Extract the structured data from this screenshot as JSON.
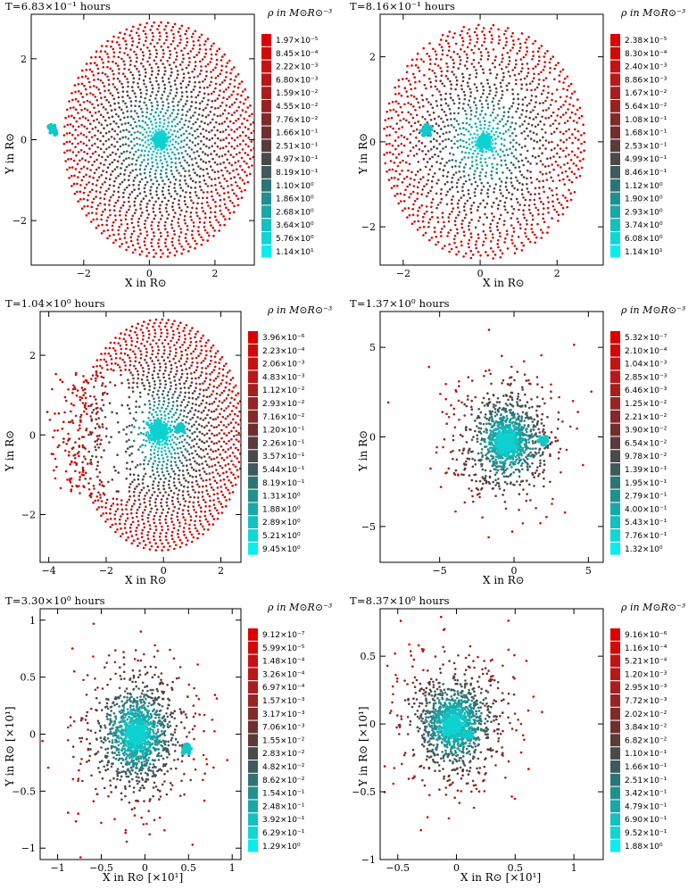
{
  "panels": [
    {
      "time": "T=6.83×10⁻¹ hours",
      "colorbar_title": "ρ in M⊙R⊙⁻³",
      "xlabel": "X in R⊙",
      "ylabel": "Y in R⊙",
      "xticks": [
        "−2",
        "0",
        "2"
      ],
      "yticks": [
        "2",
        "0",
        "−2"
      ],
      "colorbar": [
        "1.97×10⁻⁵",
        "8.45×10⁻⁴",
        "2.22×10⁻³",
        "6.80×10⁻³",
        "1.59×10⁻²",
        "4.55×10⁻²",
        "7.76×10⁻²",
        "1.66×10⁻¹",
        "2.51×10⁻¹",
        "4.97×10⁻¹",
        "8.19×10⁻¹",
        "1.10×10⁰",
        "1.86×10⁰",
        "2.68×10⁰",
        "3.64×10⁰",
        "5.76×10⁰",
        "1.14×10¹"
      ]
    },
    {
      "time": "T=8.16×10⁻¹ hours",
      "colorbar_title": "ρ in M⊙R⊙⁻³",
      "xlabel": "X in R⊙",
      "ylabel": "Y in R⊙",
      "xticks": [
        "−2",
        "0",
        "2"
      ],
      "yticks": [
        "2",
        "0",
        "−2"
      ],
      "colorbar": [
        "2.38×10⁻⁵",
        "8.30×10⁻⁴",
        "2.40×10⁻³",
        "8.86×10⁻³",
        "1.67×10⁻²",
        "5.64×10⁻²",
        "1.08×10⁻¹",
        "1.68×10⁻¹",
        "2.53×10⁻¹",
        "4.99×10⁻¹",
        "8.46×10⁻¹",
        "1.12×10⁰",
        "1.90×10⁰",
        "2.93×10⁰",
        "3.74×10⁰",
        "6.08×10⁰",
        "1.14×10¹"
      ]
    },
    {
      "time": "T=1.04×10⁰ hours",
      "colorbar_title": "ρ in M⊙R⊙⁻³",
      "xlabel": "X in R⊙",
      "ylabel": "Y in R⊙",
      "xticks": [
        "−4",
        "−2",
        "0",
        "2"
      ],
      "yticks": [
        "2",
        "0",
        "−2"
      ],
      "colorbar": [
        "3.96×10⁻⁶",
        "2.23×10⁻⁴",
        "2.06×10⁻³",
        "4.83×10⁻³",
        "1.12×10⁻²",
        "2.93×10⁻²",
        "7.16×10⁻²",
        "1.20×10⁻¹",
        "2.26×10⁻¹",
        "3.57×10⁻¹",
        "5.44×10⁻¹",
        "8.19×10⁻¹",
        "1.31×10⁰",
        "1.88×10⁰",
        "2.89×10⁰",
        "5.21×10⁰",
        "9.45×10⁰"
      ]
    },
    {
      "time": "T=1.37×10⁰ hours",
      "colorbar_title": "ρ in M⊙R⊙⁻³",
      "xlabel": "X in R⊙",
      "ylabel": "Y in R⊙",
      "xticks": [
        "−5",
        "0",
        "5"
      ],
      "yticks": [
        "5",
        "0",
        "−5"
      ],
      "colorbar": [
        "5.32×10⁻⁷",
        "2.10×10⁻⁴",
        "1.04×10⁻³",
        "2.85×10⁻³",
        "6.46×10⁻³",
        "1.25×10⁻²",
        "2.21×10⁻²",
        "3.90×10⁻²",
        "6.54×10⁻²",
        "9.78×10⁻²",
        "1.39×10⁻¹",
        "1.95×10⁻¹",
        "2.79×10⁻¹",
        "4.00×10⁻¹",
        "5.43×10⁻¹",
        "7.76×10⁻¹",
        "1.32×10⁰"
      ]
    },
    {
      "time": "T=3.30×10⁰ hours",
      "colorbar_title": "ρ in M⊙R⊙⁻³",
      "xlabel": "X in R⊙ [×10¹]",
      "ylabel": "Y in R⊙ [×10¹]",
      "xticks": [
        "−1",
        "−0.5",
        "0",
        "0.5",
        "1"
      ],
      "yticks": [
        "1",
        "0.5",
        "0",
        "−0.5",
        "−1"
      ],
      "colorbar": [
        "9.12×10⁻⁷",
        "5.99×10⁻⁵",
        "1.48×10⁻⁴",
        "3.26×10⁻⁴",
        "6.97×10⁻⁴",
        "1.57×10⁻³",
        "3.17×10⁻³",
        "7.06×10⁻³",
        "1.55×10⁻²",
        "2.83×10⁻²",
        "4.82×10⁻²",
        "8.62×10⁻²",
        "1.54×10⁻¹",
        "2.48×10⁻¹",
        "3.92×10⁻¹",
        "6.29×10⁻¹",
        "1.29×10⁰"
      ]
    },
    {
      "time": "T=8.37×10⁰ hours",
      "colorbar_title": "ρ in M⊙R⊙⁻³",
      "xlabel": "X in R⊙ [×10¹]",
      "ylabel": "Y in R⊙ [×10¹]",
      "xticks": [
        "−0.5",
        "0",
        "0.5",
        "1"
      ],
      "yticks": [
        "0.5",
        "0",
        "−0.5",
        "−1"
      ],
      "colorbar": [
        "9.16×10⁻⁶",
        "1.16×10⁻⁴",
        "5.21×10⁻⁴",
        "1.20×10⁻³",
        "2.95×10⁻³",
        "7.72×10⁻³",
        "2.02×10⁻²",
        "3.84×10⁻²",
        "6.82×10⁻²",
        "1.10×10⁻¹",
        "1.66×10⁻¹",
        "2.51×10⁻¹",
        "3.42×10⁻¹",
        "4.79×10⁻¹",
        "6.90×10⁻¹",
        "9.52×10⁻¹",
        "1.88×10⁰"
      ]
    }
  ],
  "colors": {
    "swatches": [
      "#dd0000",
      "#d30808",
      "#c51212",
      "#b81818",
      "#a81e1e",
      "#962424",
      "#822a2a",
      "#6f2f2f",
      "#5a3a3a",
      "#4a4a4a",
      "#3f5a5a",
      "#2f7474",
      "#208f8f",
      "#18a8a8",
      "#14c0c0",
      "#10d6d6",
      "#08eeee"
    ]
  }
}
